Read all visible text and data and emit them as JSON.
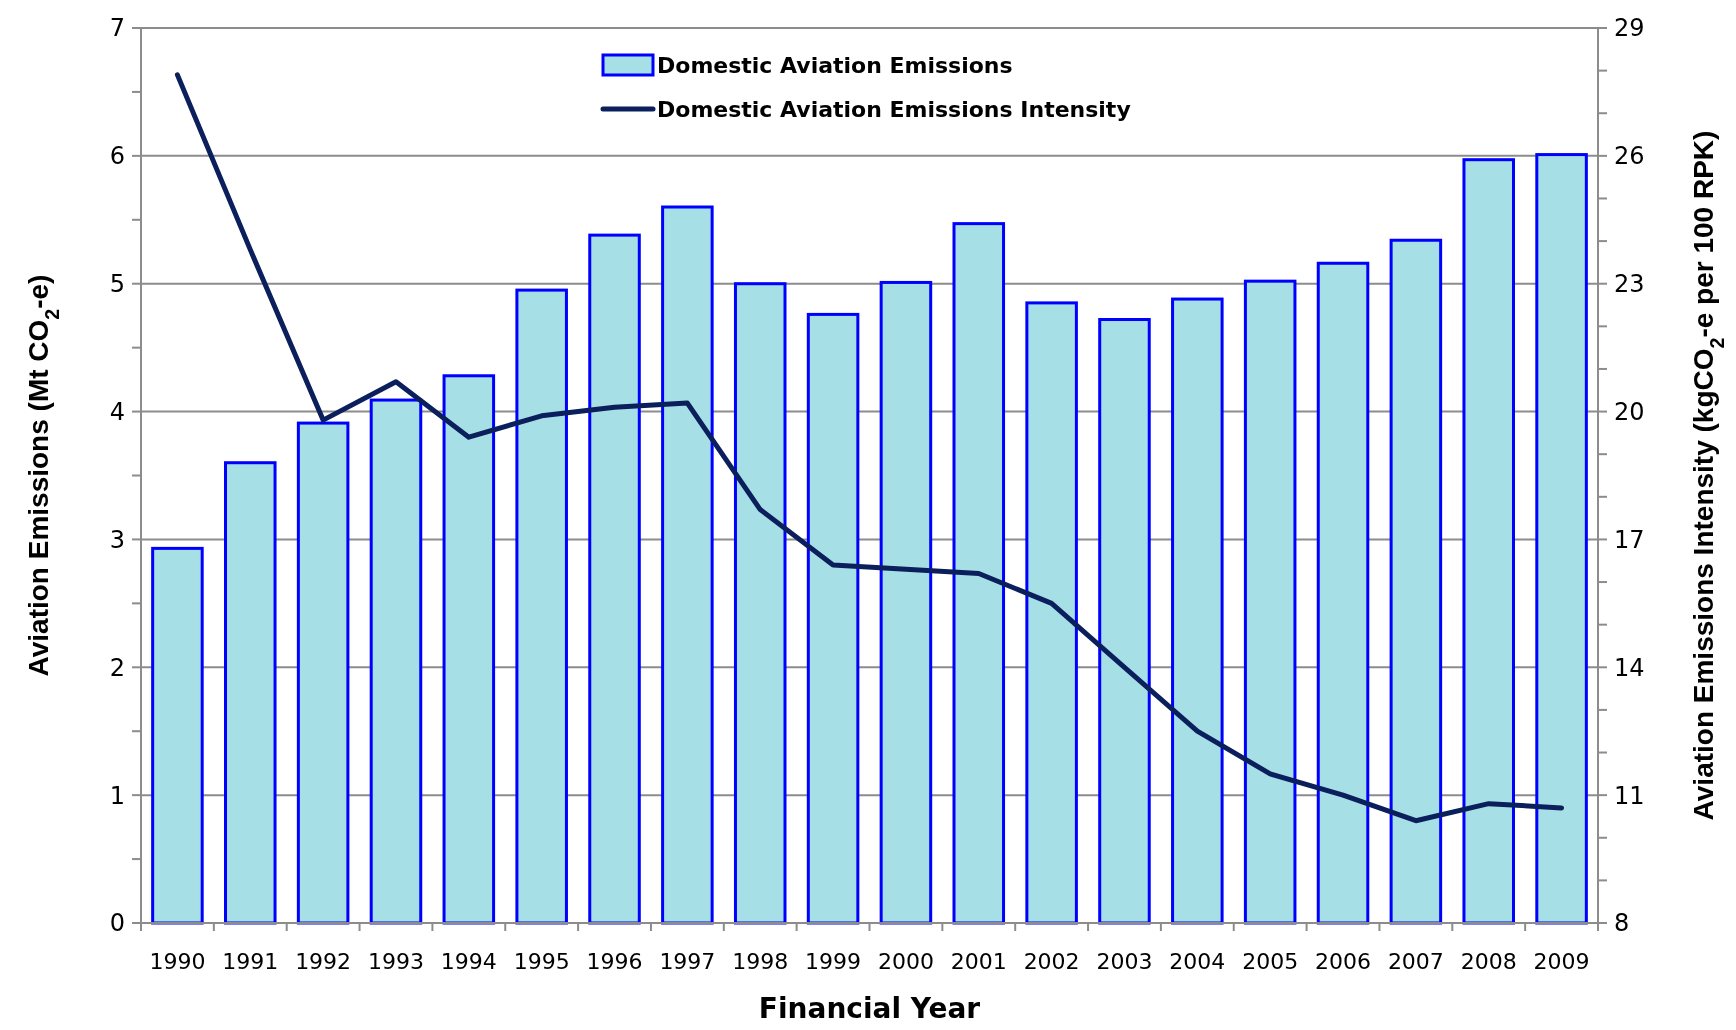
{
  "chart_data": {
    "type": "bar",
    "xlabel": "Financial Year",
    "ylabel": "Aviation Emissions (Mt CO$_{2}$-e)",
    "y2label": "Aviation Emissions Intensity (kgCO$_{2}$-e per 100 RPK)",
    "categories": [
      "1990",
      "1991",
      "1992",
      "1993",
      "1994",
      "1995",
      "1996",
      "1997",
      "1998",
      "1999",
      "2000",
      "2001",
      "2002",
      "2003",
      "2004",
      "2005",
      "2006",
      "2007",
      "2008",
      "2009"
    ],
    "series": [
      {
        "name": "Domestic Aviation Emissions",
        "color": "#a6dfe6",
        "values": [
          2.93,
          3.6,
          3.91,
          4.09,
          4.28,
          4.95,
          5.38,
          5.6,
          5.0,
          4.76,
          5.01,
          5.47,
          4.85,
          4.72,
          4.88,
          5.02,
          5.16,
          5.34,
          5.97,
          6.01
        ]
      },
      {
        "name": "Domestic Aviation Emissions Intensity",
        "type": "line",
        "axis": "y2",
        "color": "#0a1f5c",
        "values": [
          27.9,
          23.8,
          19.8,
          20.7,
          19.4,
          19.9,
          20.1,
          20.2,
          17.7,
          16.4,
          16.3,
          16.2,
          15.5,
          14.0,
          12.5,
          11.5,
          11.0,
          10.4,
          10.8,
          10.7
        ]
      }
    ],
    "ylim": [
      0,
      7
    ],
    "yticks": [
      0,
      {
        "value": 0.5,
        "label": null
      },
      1,
      {
        "value": 1.5,
        "label": null
      },
      2,
      {
        "value": 2.5,
        "label": null
      },
      3,
      {
        "value": 3.5,
        "label": null
      },
      4,
      {
        "value": 4.5,
        "label": null
      },
      5,
      {
        "value": 5.5,
        "label": null
      },
      6,
      {
        "value": 6.5,
        "label": null
      },
      7
    ],
    "y2lim": [
      8,
      29
    ],
    "y2ticks": [
      8,
      {
        "value": 9,
        "label": null
      },
      {
        "value": 10,
        "label": null
      },
      11,
      {
        "value": 12,
        "label": null
      },
      {
        "value": 13,
        "label": null
      },
      14,
      {
        "value": 15,
        "label": null
      },
      {
        "value": 16,
        "label": null
      },
      17,
      {
        "value": 18,
        "label": null
      },
      {
        "value": 19,
        "label": null
      },
      20,
      {
        "value": 21,
        "label": null
      },
      {
        "value": 22,
        "label": null
      },
      23,
      {
        "value": 24,
        "label": null
      },
      {
        "value": 25,
        "label": null
      },
      26,
      {
        "value": 27,
        "label": null
      },
      {
        "value": 28,
        "label": null
      },
      29
    ],
    "grid": "y",
    "legend": "top"
  }
}
